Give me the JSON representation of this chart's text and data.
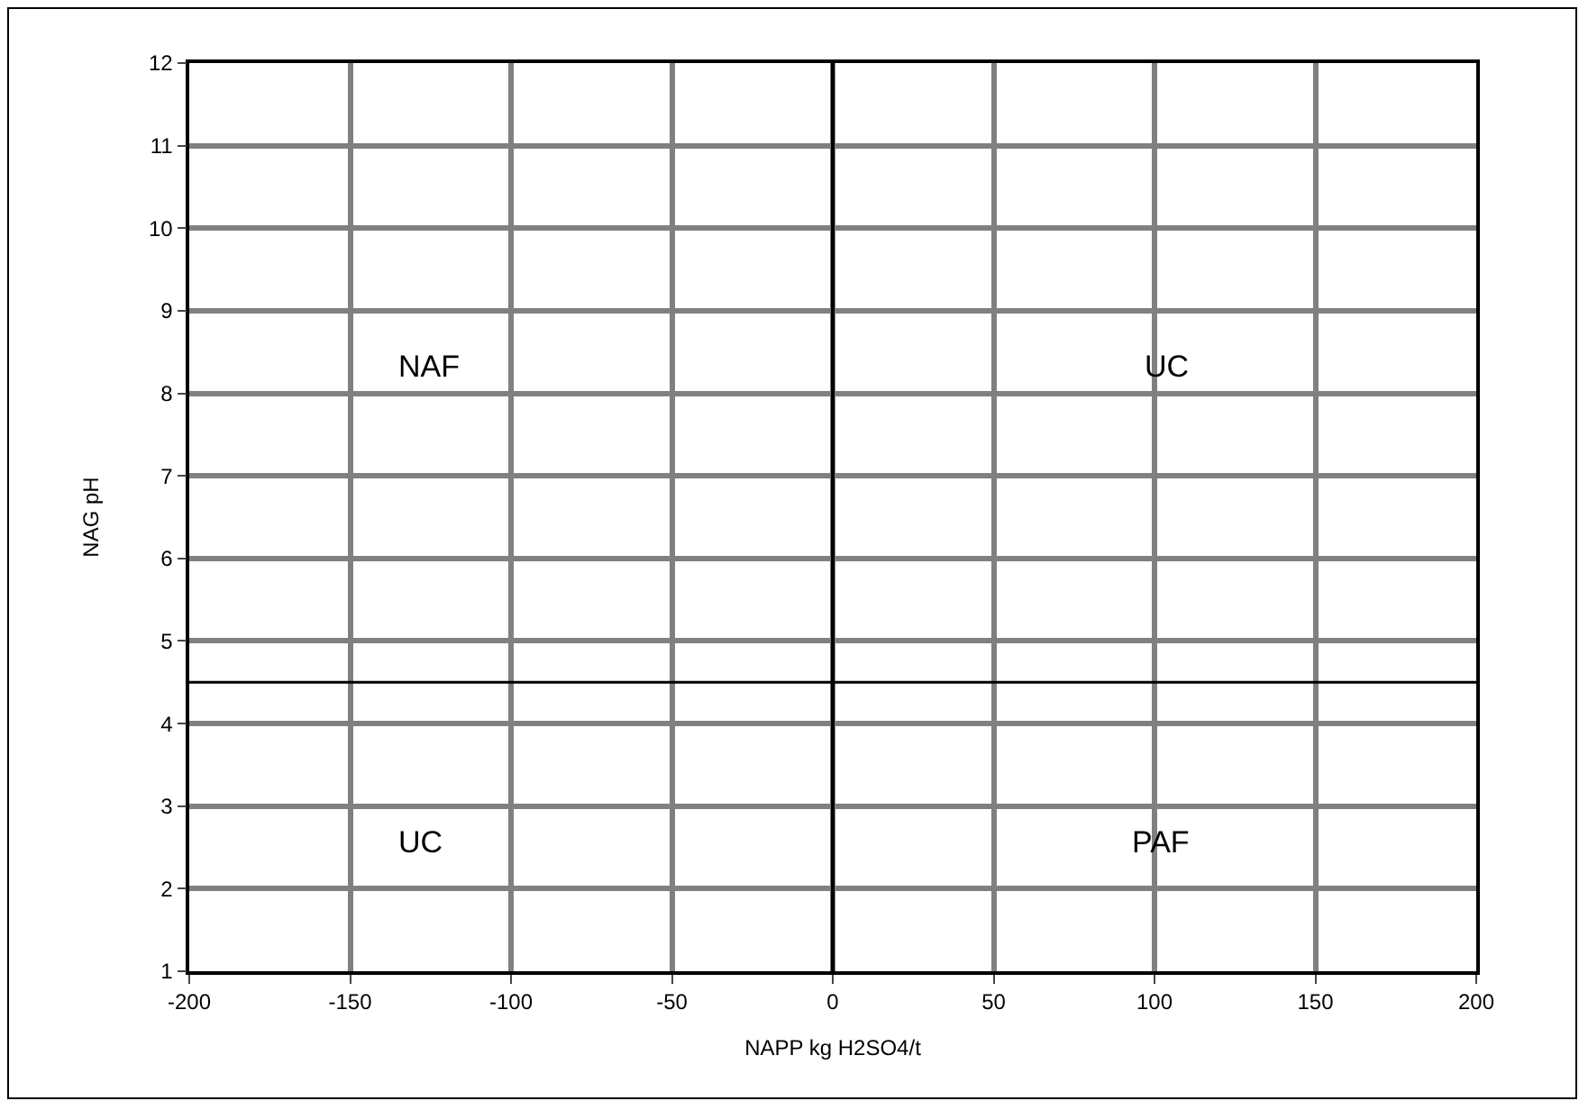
{
  "chart_data": {
    "type": "scatter",
    "xlabel": "NAPP kg H2SO4/t",
    "ylabel": "NAG pH",
    "xlim": [
      -200,
      200
    ],
    "xticks": [
      -200,
      -150,
      -100,
      -50,
      0,
      50,
      100,
      150,
      200
    ],
    "ylim": [
      1,
      12
    ],
    "yticks": [
      1,
      2,
      3,
      4,
      5,
      6,
      7,
      8,
      9,
      10,
      11,
      12
    ],
    "grid": true,
    "ref_lines": [
      {
        "axis": "x",
        "value": 0,
        "color": "#000000"
      },
      {
        "axis": "y",
        "value": 4.5,
        "color": "#000000"
      }
    ],
    "annotations": [
      "NAF",
      "UC",
      "UC",
      "PAF"
    ]
  }
}
